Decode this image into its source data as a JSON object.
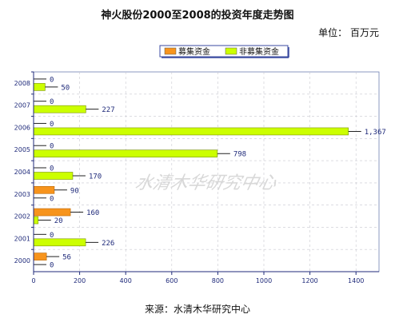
{
  "header": {
    "title": "神火股份2000至2008的投资年度走势图",
    "unit": "单位：  百万元"
  },
  "footer": {
    "source": "来源：水清木华研究中心"
  },
  "watermark": "水清木华研究中心",
  "chart_data": {
    "type": "bar",
    "orientation": "horizontal",
    "categories": [
      "2008",
      "2007",
      "2006",
      "2005",
      "2004",
      "2003",
      "2002",
      "2001",
      "2000"
    ],
    "series": [
      {
        "name": "募集资金",
        "color": "#f7941d",
        "values": [
          0,
          0,
          0,
          0,
          0,
          90,
          160,
          0,
          56
        ],
        "labels": [
          "0",
          "0",
          "0",
          "0",
          "0",
          "90",
          "160",
          "0",
          "56"
        ]
      },
      {
        "name": "非募集资金",
        "color": "#ccff00",
        "values": [
          50,
          227,
          1367,
          798,
          170,
          0,
          20,
          226,
          0
        ],
        "labels": [
          "50",
          "227",
          "1,367",
          "798",
          "170",
          "0",
          "20",
          "226",
          "0"
        ]
      }
    ],
    "xlim": [
      0,
      1500
    ],
    "xticks": [
      0,
      200,
      400,
      600,
      800,
      1000,
      1200,
      1400
    ],
    "grid": true,
    "legend_position": "top-center"
  }
}
